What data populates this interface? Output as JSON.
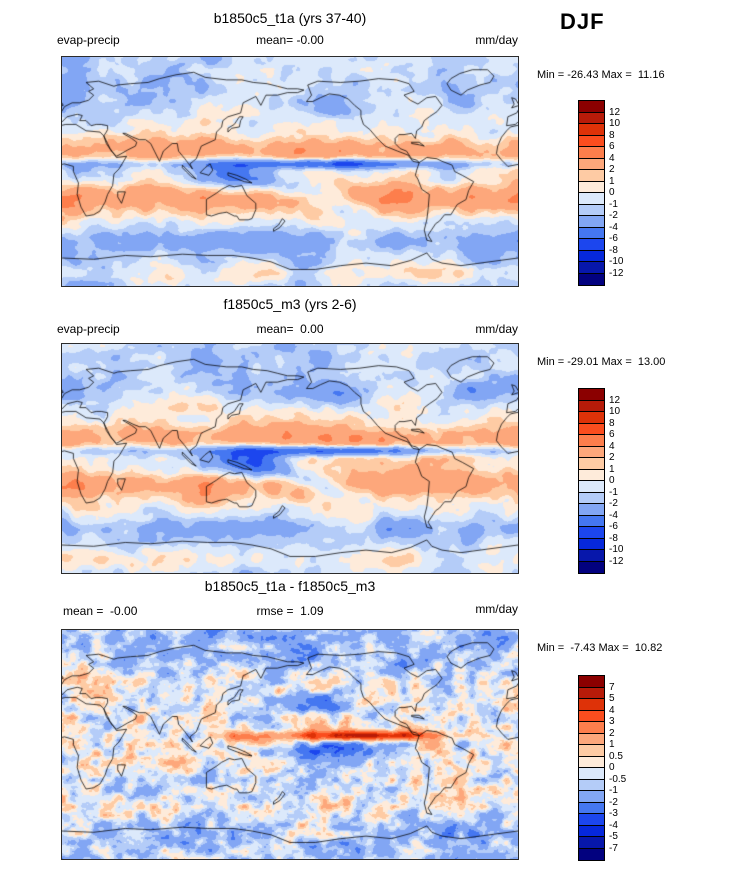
{
  "header": {
    "season_label": "DJF"
  },
  "panels": [
    {
      "title": "b1850c5_t1a (yrs 37-40)",
      "var_label": "evap-precip",
      "mean_label": "mean= -0.00",
      "units_label": "mm/day",
      "minmax_label": "Min = -26.43 Max =  11.16",
      "colorbar_ticks": [
        "12",
        "10",
        "8",
        "6",
        "4",
        "2",
        "1",
        "0",
        "-1",
        "-2",
        "-4",
        "-6",
        "-8",
        "-10",
        "-12"
      ]
    },
    {
      "title": "f1850c5_m3 (yrs 2-6)",
      "var_label": "evap-precip",
      "mean_label": "mean=  0.00",
      "units_label": "mm/day",
      "minmax_label": "Min = -29.01 Max =  13.00",
      "colorbar_ticks": [
        "12",
        "10",
        "8",
        "6",
        "4",
        "2",
        "1",
        "0",
        "-1",
        "-2",
        "-4",
        "-6",
        "-8",
        "-10",
        "-12"
      ]
    },
    {
      "title": "b1850c5_t1a - f1850c5_m3",
      "mean_label": "mean =  -0.00",
      "rmse_label": "rmse =  1.09",
      "units_label": "mm/day",
      "minmax_label": "Min =  -7.43 Max =  10.82",
      "colorbar_ticks": [
        "7",
        "5",
        "4",
        "3",
        "2",
        "1",
        "0.5",
        "0",
        "-0.5",
        "-1",
        "-2",
        "-3",
        "-4",
        "-5",
        "-7"
      ]
    }
  ],
  "colorbar": {
    "colors_top_to_bottom": [
      "#8b0000",
      "#b71b09",
      "#de3208",
      "#fb4d1e",
      "#fd7e4c",
      "#fda77b",
      "#fecba4",
      "#feebda",
      "#dce9fb",
      "#b4ccf8",
      "#82a6f4",
      "#4577f1",
      "#1c46ee",
      "#0628db",
      "#0717ab",
      "#02017f"
    ]
  },
  "chart_data": [
    {
      "type": "heatmap",
      "subtype": "filled-contour-world-map",
      "panel": "top",
      "title": "b1850c5_t1a (yrs 37-40)",
      "variable": "evap-precip",
      "season": "DJF",
      "units": "mm/day",
      "stats": {
        "mean": -0.0,
        "min": -26.43,
        "max": 11.16
      },
      "contour_levels": [
        -12,
        -10,
        -8,
        -6,
        -4,
        -2,
        -1,
        0,
        1,
        2,
        4,
        6,
        8,
        10,
        12
      ],
      "projection": "equirectangular, lon 0-360E, lat 90S-90N",
      "legend_position": "right"
    },
    {
      "type": "heatmap",
      "subtype": "filled-contour-world-map",
      "panel": "middle",
      "title": "f1850c5_m3 (yrs 2-6)",
      "variable": "evap-precip",
      "season": "DJF",
      "units": "mm/day",
      "stats": {
        "mean": 0.0,
        "min": -29.01,
        "max": 13.0
      },
      "contour_levels": [
        -12,
        -10,
        -8,
        -6,
        -4,
        -2,
        -1,
        0,
        1,
        2,
        4,
        6,
        8,
        10,
        12
      ],
      "projection": "equirectangular, lon 0-360E, lat 90S-90N",
      "legend_position": "right"
    },
    {
      "type": "heatmap",
      "subtype": "filled-contour-world-map-difference",
      "panel": "bottom",
      "title": "b1850c5_t1a - f1850c5_m3",
      "variable": "evap-precip",
      "season": "DJF",
      "units": "mm/day",
      "stats": {
        "mean": -0.0,
        "rmse": 1.09,
        "min": -7.43,
        "max": 10.82
      },
      "contour_levels": [
        -7,
        -5,
        -4,
        -3,
        -2,
        -1,
        -0.5,
        0,
        0.5,
        1,
        2,
        3,
        4,
        5,
        7
      ],
      "projection": "equirectangular, lon 0-360E, lat 90S-90N",
      "legend_position": "right"
    }
  ]
}
